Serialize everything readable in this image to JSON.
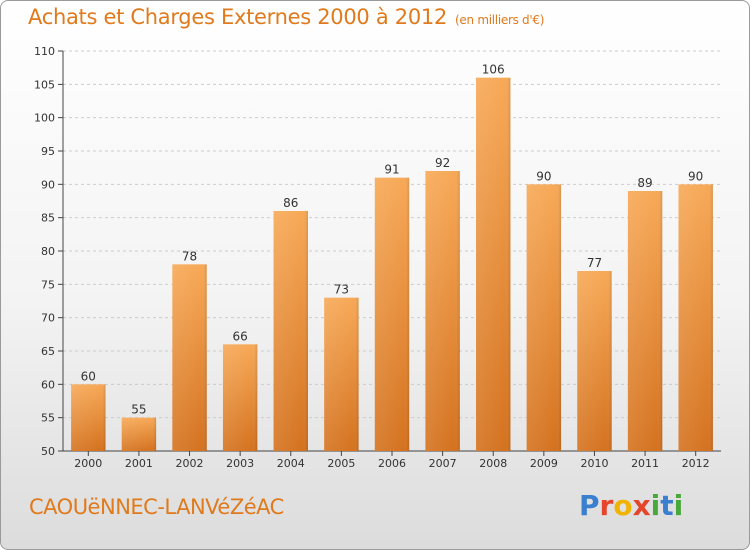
{
  "header": {
    "title": "Achats et Charges Externes 2000 à 2012",
    "subtitle": "(en milliers d'€)"
  },
  "footer": {
    "place": "CAOUëNNEC-LANVéZéAC",
    "logo_letters": [
      {
        "ch": "P",
        "color": "#3a7fd0"
      },
      {
        "ch": "r",
        "color": "#e5462b"
      },
      {
        "ch": "o",
        "color": "#f0b400"
      },
      {
        "ch": "x",
        "color": "#e5462b"
      },
      {
        "ch": "i",
        "color": "#48a83a"
      },
      {
        "ch": "t",
        "color": "#3a7fd0"
      },
      {
        "ch": "i",
        "color": "#48a83a"
      }
    ]
  },
  "colors": {
    "accent": "#e07a1c",
    "bar_top": "#f7a957",
    "bar_bottom": "#d4721f",
    "grid": "#cccccc"
  },
  "chart_data": {
    "type": "bar",
    "categories": [
      "2000",
      "2001",
      "2002",
      "2003",
      "2004",
      "2005",
      "2006",
      "2007",
      "2008",
      "2009",
      "2010",
      "2011",
      "2012"
    ],
    "values": [
      60,
      55,
      78,
      66,
      86,
      73,
      91,
      92,
      106,
      90,
      77,
      89,
      90
    ],
    "ylim": [
      50,
      110
    ],
    "yticks": [
      50,
      55,
      60,
      65,
      70,
      75,
      80,
      85,
      90,
      95,
      100,
      105,
      110
    ],
    "grid": true,
    "data_labels": true
  }
}
